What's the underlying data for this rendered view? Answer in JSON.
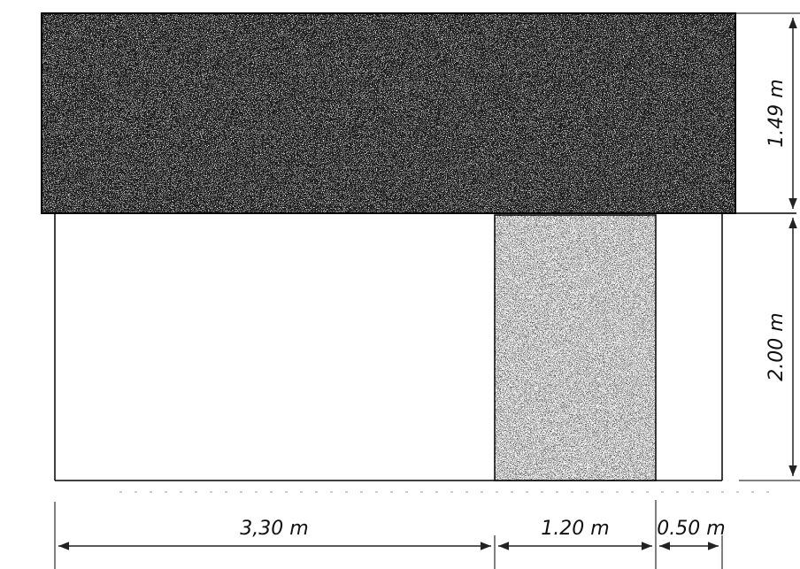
{
  "diagram": {
    "dimensions": {
      "beam_height": "1.49 m",
      "wall_height": "2.00 m",
      "width_left": "3,30 m",
      "width_middle": "1.20 m",
      "width_right": "0.50 m"
    }
  }
}
